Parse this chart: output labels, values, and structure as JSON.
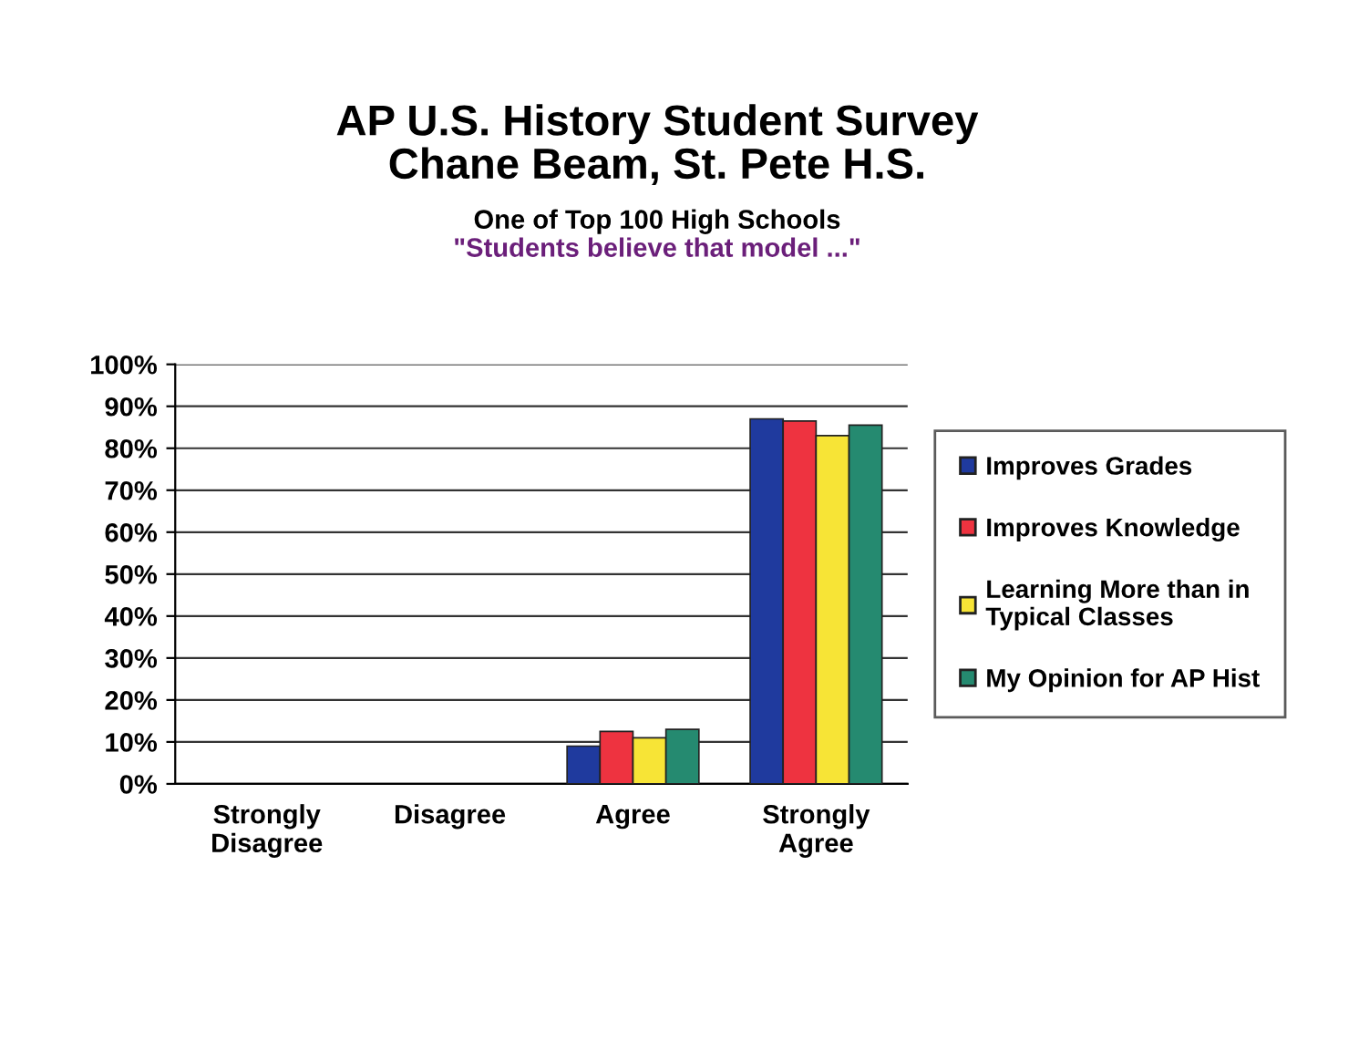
{
  "chart_data": {
    "type": "bar",
    "title": "AP U.S. History Student Survey\nChane Beam, St. Pete H.S.",
    "subtitle": "One of Top 100 High Schools",
    "annotations": [
      "\"Students believe that model ...\""
    ],
    "categories": [
      "Strongly\nDisagree",
      "Disagree",
      "Agree",
      "Strongly\nAgree"
    ],
    "series": [
      {
        "name": "Improves Grades",
        "color": "#1f3a9e",
        "values": [
          null,
          null,
          9,
          87
        ]
      },
      {
        "name": "Improves Knowledge",
        "color": "#ee3340",
        "values": [
          null,
          null,
          12.5,
          86.5
        ]
      },
      {
        "name": "Learning More than in\nTypical Classes",
        "color": "#f7e436",
        "values": [
          null,
          null,
          11,
          83
        ]
      },
      {
        "name": "My Opinion for AP Hist",
        "color": "#258a70",
        "values": [
          null,
          null,
          13,
          85.5
        ]
      }
    ],
    "ylim": [
      0,
      100
    ],
    "yticks": [
      {
        "value": 0,
        "label": "0%"
      },
      {
        "value": 10,
        "label": "10%"
      },
      {
        "value": 20,
        "label": "20%"
      },
      {
        "value": 30,
        "label": "30%"
      },
      {
        "value": 40,
        "label": "40%"
      },
      {
        "value": 50,
        "label": "50%"
      },
      {
        "value": 60,
        "label": "60%"
      },
      {
        "value": 70,
        "label": "70%"
      },
      {
        "value": 80,
        "label": "80%"
      },
      {
        "value": 90,
        "label": "90%"
      },
      {
        "value": 100,
        "label": "100%"
      }
    ],
    "grid": "y",
    "legend": "right"
  }
}
